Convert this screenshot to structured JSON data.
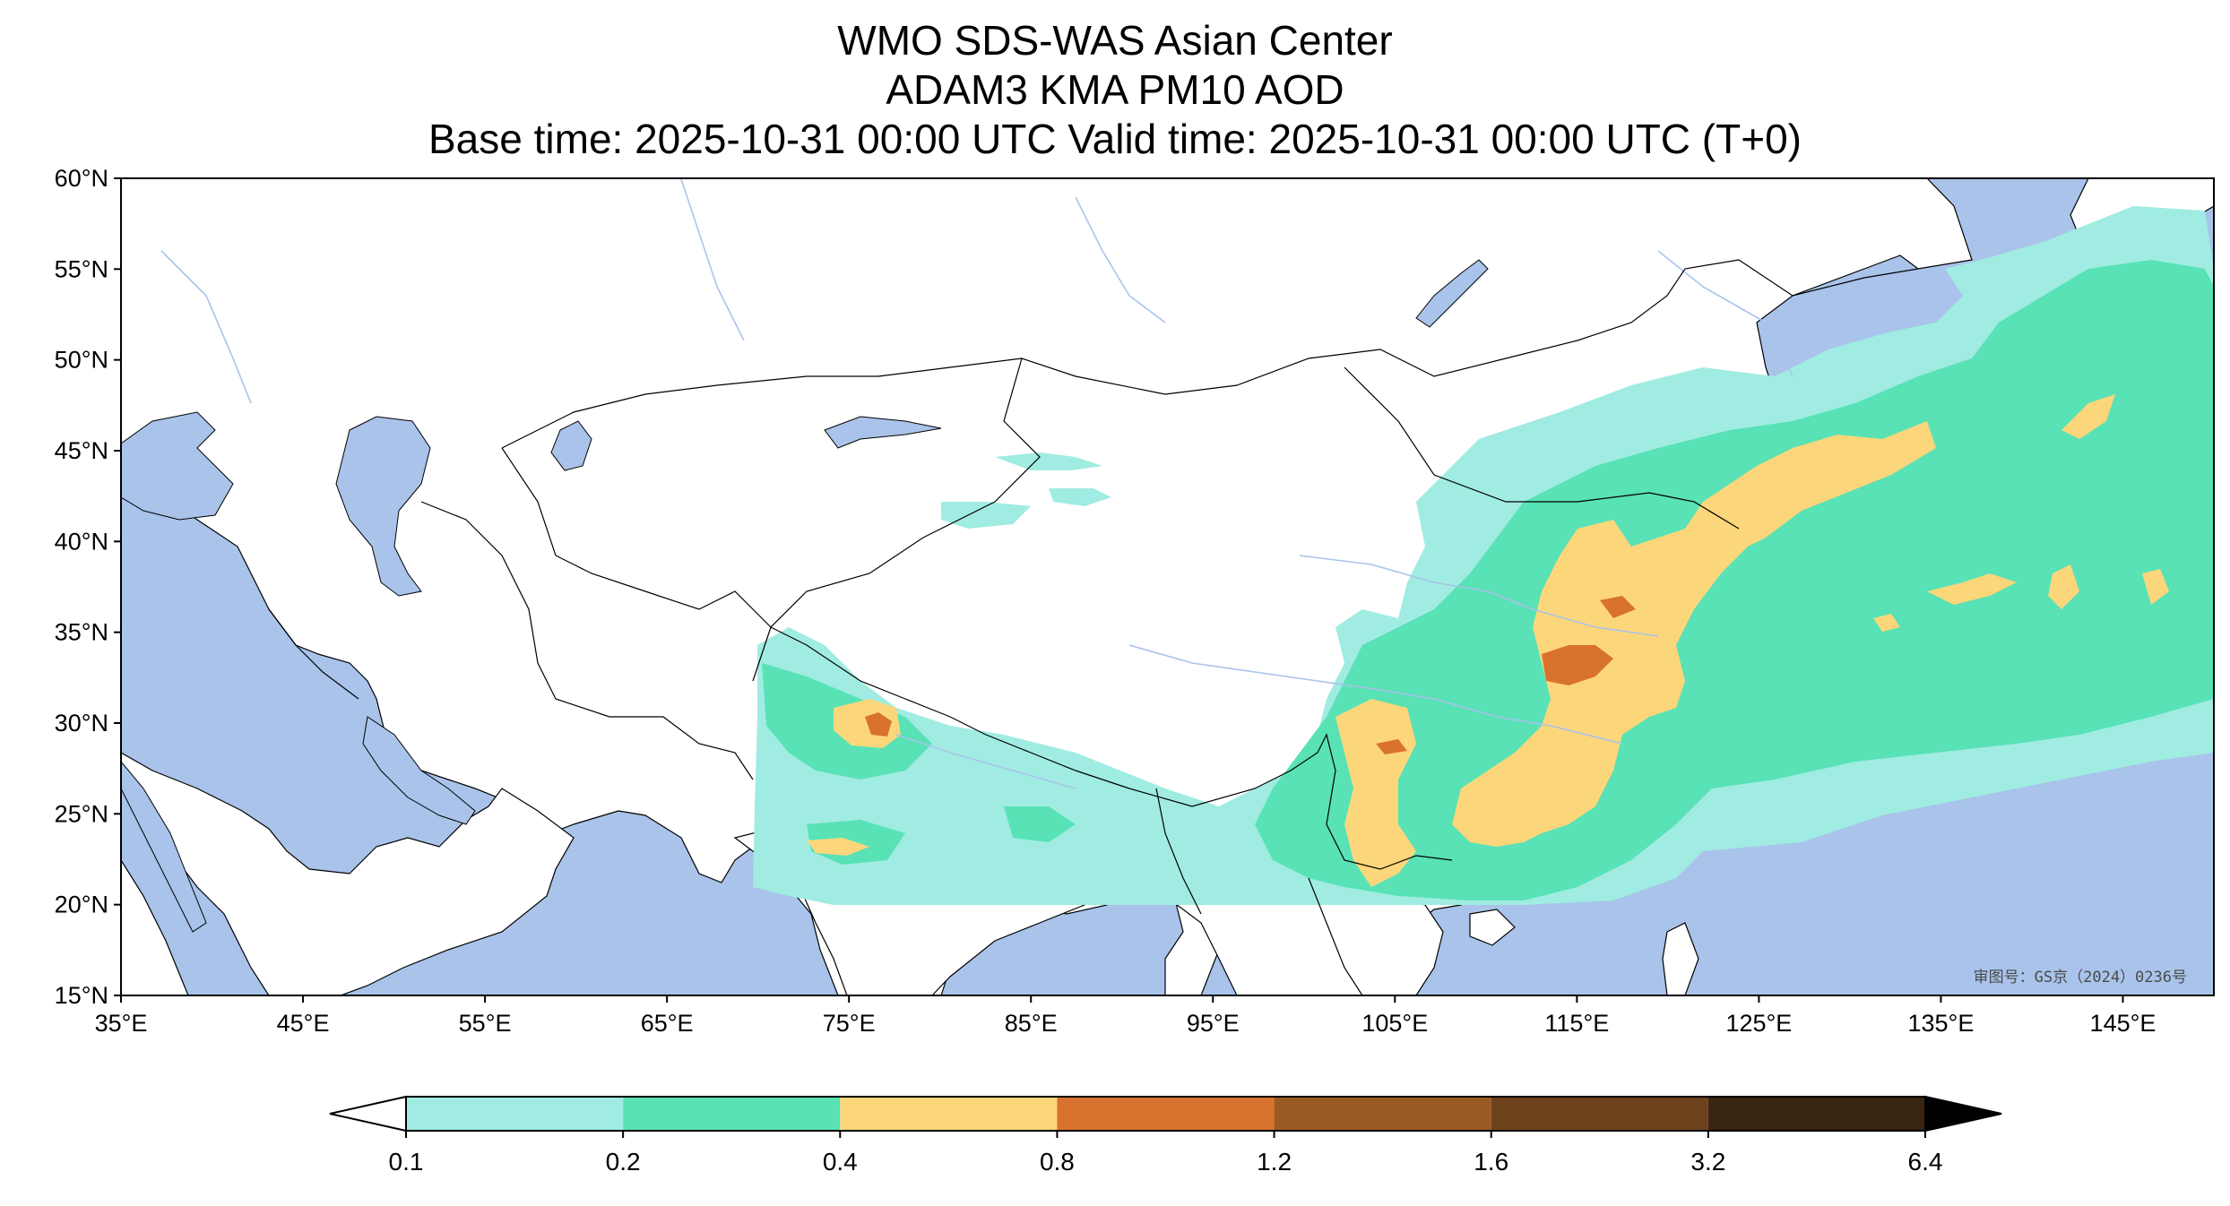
{
  "title": {
    "line1": "WMO SDS-WAS Asian Center",
    "line2": "ADAM3 KMA PM10 AOD",
    "line3": "Base time: 2025-10-31 00:00 UTC Valid time: 2025-10-31 00:00 UTC (T+0)"
  },
  "map": {
    "projection": "PlateCarree",
    "lon_range": [
      35,
      150
    ],
    "lat_range": [
      15,
      60
    ],
    "x_ticks": [
      "35°E",
      "45°E",
      "55°E",
      "65°E",
      "75°E",
      "85°E",
      "95°E",
      "105°E",
      "115°E",
      "125°E",
      "135°E",
      "145°E"
    ],
    "y_ticks": [
      "60°N",
      "55°N",
      "50°N",
      "45°N",
      "40°N",
      "35°N",
      "30°N",
      "25°N",
      "20°N",
      "15°N"
    ],
    "watermark": "审图号：GS京（2024）0236号",
    "colors": {
      "ocean": "#a9c3ea",
      "land": "#ffffff",
      "border": "#000000",
      "river": "#a9c3ea"
    }
  },
  "colorbar": {
    "labels": [
      "0.1",
      "0.2",
      "0.4",
      "0.8",
      "1.2",
      "1.6",
      "3.2",
      "6.4"
    ],
    "colors": [
      "#a0ece2",
      "#58e2b6",
      "#fcd67a",
      "#d9722e",
      "#9b5a24",
      "#6b421c",
      "#3a2412"
    ],
    "extend": "both"
  }
}
